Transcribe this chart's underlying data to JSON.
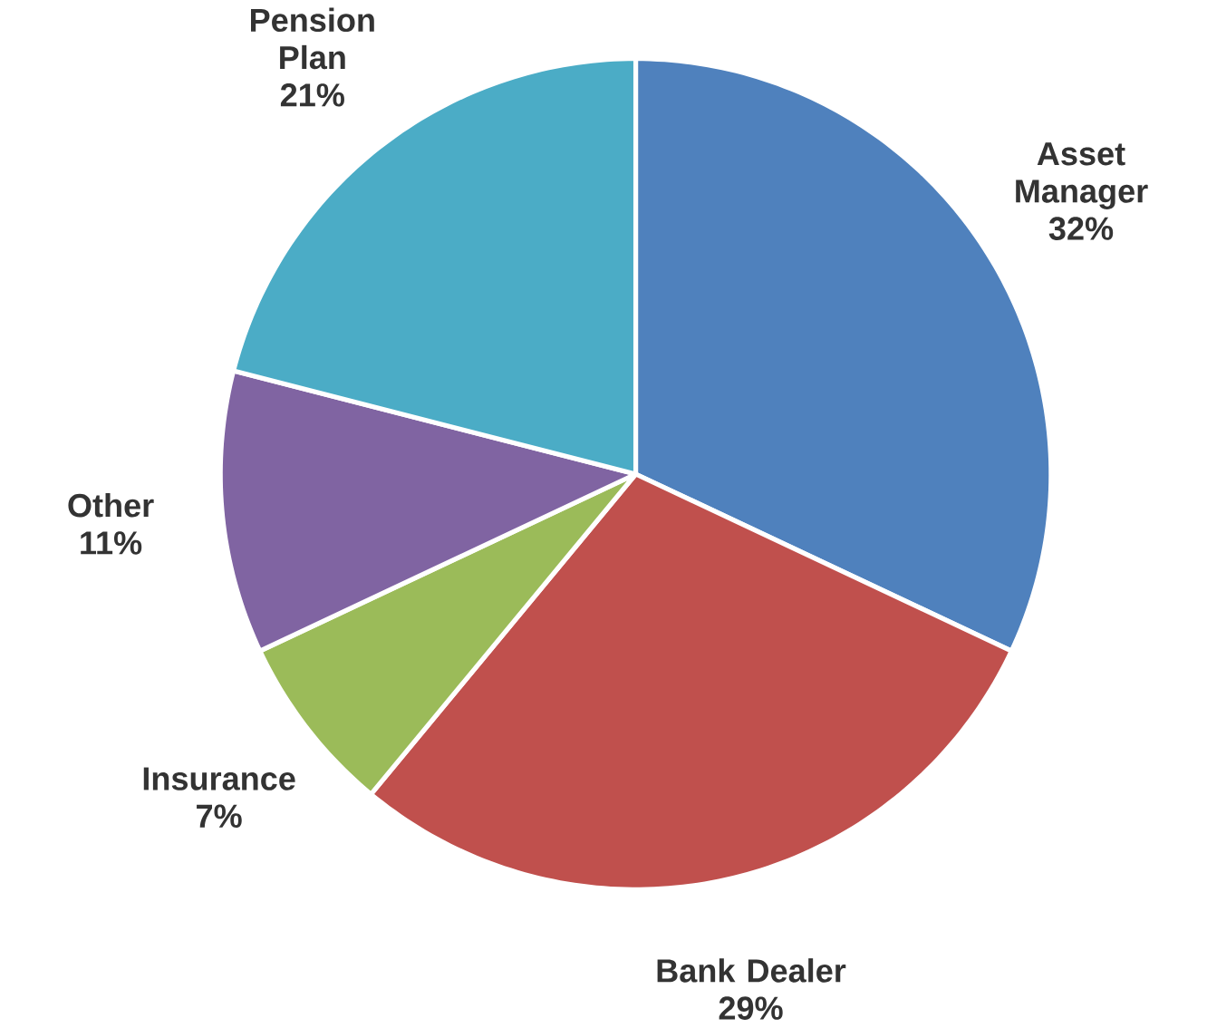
{
  "chart_data": {
    "type": "pie",
    "categories": [
      "Asset Manager",
      "Bank Dealer",
      "Insurance",
      "Other",
      "Pension Plan"
    ],
    "values": [
      32,
      29,
      7,
      11,
      21
    ],
    "value_labels": [
      "32%",
      "29%",
      "7%",
      "11%",
      "21%"
    ],
    "colors": [
      "#4f81bd",
      "#c0504d",
      "#9bbb59",
      "#8064a2",
      "#4bacc6"
    ]
  }
}
